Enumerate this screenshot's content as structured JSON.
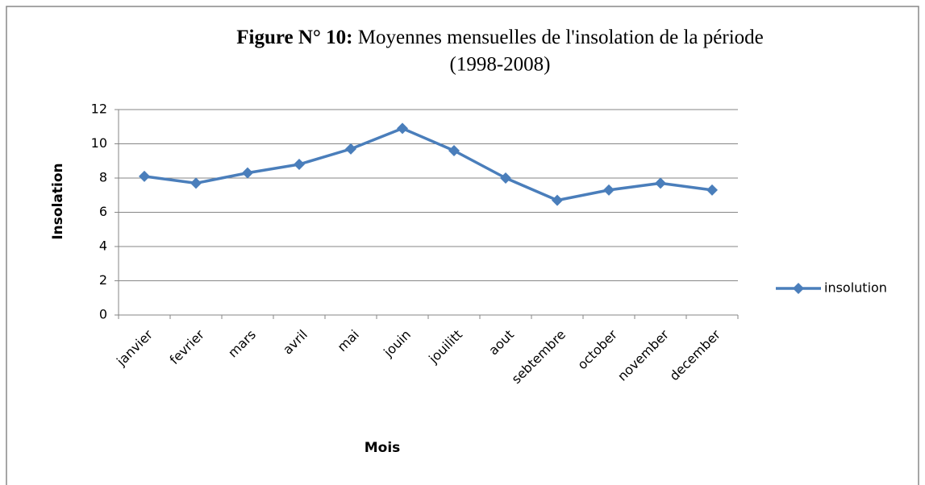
{
  "chart_data": {
    "type": "line",
    "title": [
      "Figure N° 10:",
      "Moyennes mensuelles de l'insolation de la période",
      "(1998-2008)"
    ],
    "x_label": "Mois",
    "y_label": "Insolation",
    "categories": [
      "janvier",
      "fevrier",
      "mars",
      "avril",
      "mai",
      "jouin",
      "jouilitt",
      "aout",
      "sebtembre",
      "october",
      "november",
      "december"
    ],
    "series": [
      {
        "name": "insolution",
        "color": "#4a7ebb",
        "values": [
          8.1,
          7.7,
          8.3,
          8.8,
          9.7,
          10.9,
          9.6,
          8.0,
          6.7,
          7.3,
          7.7,
          7.3
        ]
      }
    ],
    "ylim": [
      0,
      12
    ],
    "yticks": [
      0,
      2,
      4,
      6,
      8,
      10,
      12
    ],
    "grid": true,
    "legend": "right"
  }
}
